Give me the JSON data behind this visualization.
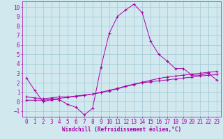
{
  "bg_color": "#d0e8ee",
  "grid_color": "#a0c8d4",
  "line_color": "#aa00aa",
  "xlabel": "Windchill (Refroidissement éolien,°C)",
  "xlabel_fontsize": 5.5,
  "tick_fontsize": 5.5,
  "xlim": [
    -0.5,
    23.5
  ],
  "ylim": [
    -1.6,
    10.6
  ],
  "xticks": [
    0,
    1,
    2,
    3,
    4,
    5,
    6,
    7,
    8,
    9,
    10,
    11,
    12,
    13,
    14,
    15,
    16,
    17,
    18,
    19,
    20,
    21,
    22,
    23
  ],
  "yticks": [
    -1,
    0,
    1,
    2,
    3,
    4,
    5,
    6,
    7,
    8,
    9,
    10
  ],
  "series1_x": [
    0,
    1,
    2,
    3,
    4,
    5,
    6,
    7,
    8,
    9,
    10,
    11,
    12,
    13,
    14,
    15,
    16,
    17,
    18,
    19,
    20,
    21,
    22,
    23
  ],
  "series1_y": [
    2.5,
    1.2,
    0.0,
    0.2,
    0.2,
    -0.3,
    -0.6,
    -1.4,
    -0.7,
    3.6,
    7.2,
    9.0,
    9.7,
    10.3,
    9.4,
    6.4,
    5.0,
    4.3,
    3.5,
    3.5,
    2.8,
    2.8,
    3.0,
    2.3
  ],
  "series2_x": [
    0,
    1,
    2,
    3,
    4,
    5,
    6,
    7,
    8,
    9,
    10,
    11,
    12,
    13,
    14,
    15,
    16,
    17,
    18,
    19,
    20,
    21,
    22,
    23
  ],
  "series2_y": [
    0.5,
    0.4,
    0.3,
    0.4,
    0.5,
    0.5,
    0.6,
    0.7,
    0.8,
    0.95,
    1.15,
    1.35,
    1.6,
    1.8,
    2.0,
    2.1,
    2.2,
    2.3,
    2.4,
    2.5,
    2.6,
    2.7,
    2.8,
    2.85
  ],
  "series3_x": [
    0,
    1,
    2,
    3,
    4,
    5,
    6,
    7,
    8,
    9,
    10,
    11,
    12,
    13,
    14,
    15,
    16,
    17,
    18,
    19,
    20,
    21,
    22,
    23
  ],
  "series3_y": [
    0.15,
    0.15,
    0.15,
    0.25,
    0.35,
    0.45,
    0.55,
    0.65,
    0.8,
    1.0,
    1.2,
    1.4,
    1.65,
    1.85,
    2.05,
    2.25,
    2.45,
    2.6,
    2.7,
    2.8,
    2.9,
    3.0,
    3.1,
    3.2
  ]
}
